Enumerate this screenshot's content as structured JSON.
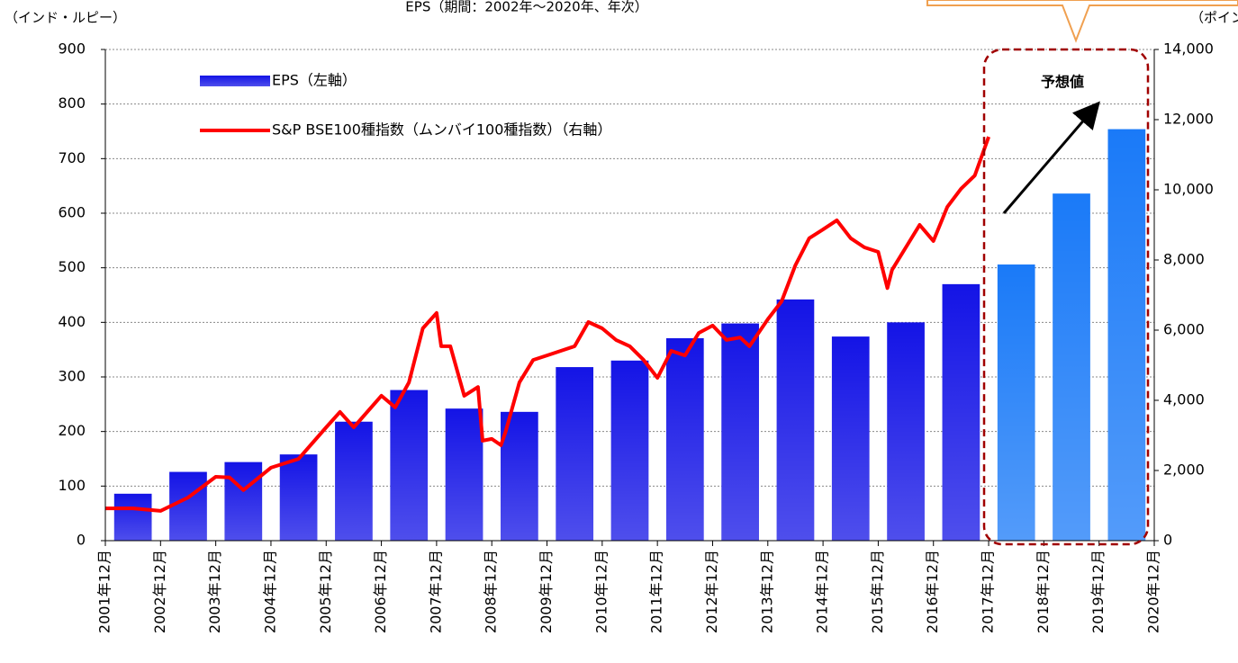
{
  "chart_data": {
    "type": "bar-line",
    "title": "EPS（期間：2002年～2020年、年次）",
    "y_axis_label": "（インド・ルピー）",
    "y2_axis_label": "（ポイント）",
    "annotation": "予想値",
    "xlim": [
      "2001-12",
      "2020-12"
    ],
    "xticks": [
      {
        "value": "2001-12",
        "label": "2001年12月"
      },
      {
        "value": "2002-12",
        "label": "2002年12月"
      },
      {
        "value": "2003-12",
        "label": "2003年12月"
      },
      {
        "value": "2004-12",
        "label": "2004年12月"
      },
      {
        "value": "2005-12",
        "label": "2005年12月"
      },
      {
        "value": "2006-12",
        "label": "2006年12月"
      },
      {
        "value": "2007-12",
        "label": "2007年12月"
      },
      {
        "value": "2008-12",
        "label": "2008年12月"
      },
      {
        "value": "2009-12",
        "label": "2009年12月"
      },
      {
        "value": "2010-12",
        "label": "2010年12月"
      },
      {
        "value": "2011-12",
        "label": "2011年12月"
      },
      {
        "value": "2012-12",
        "label": "2012年12月"
      },
      {
        "value": "2013-12",
        "label": "2013年12月"
      },
      {
        "value": "2014-12",
        "label": "2014年12月"
      },
      {
        "value": "2015-12",
        "label": "2015年12月"
      },
      {
        "value": "2016-12",
        "label": "2016年12月"
      },
      {
        "value": "2017-12",
        "label": "2017年12月"
      },
      {
        "value": "2018-12",
        "label": "2018年12月"
      },
      {
        "value": "2019-12",
        "label": "2019年12月"
      },
      {
        "value": "2020-12",
        "label": "2020年12月"
      }
    ],
    "ylim": [
      0,
      900
    ],
    "yticks": [
      0,
      100,
      200,
      300,
      400,
      500,
      600,
      700,
      800,
      900
    ],
    "y2lim": [
      0,
      14000
    ],
    "y2ticks": [
      0,
      {
        "value": 2000,
        "label": "2,000"
      },
      {
        "value": 4000,
        "label": "4,000"
      },
      {
        "value": 6000,
        "label": "6,000"
      },
      {
        "value": 8000,
        "label": "8,000"
      },
      {
        "value": 10000,
        "label": "10,000"
      },
      {
        "value": 12000,
        "label": "12,000"
      },
      {
        "value": 14000,
        "label": "14,000"
      }
    ],
    "grid": true,
    "series": [
      {
        "name": "EPS（左軸）",
        "type": "bar",
        "color": "#1414e6",
        "colors": [
          "#1414e6",
          "#1414e6",
          "#1414e6",
          "#1414e6",
          "#1414e6",
          "#1414e6",
          "#1414e6",
          "#1414e6",
          "#1414e6",
          "#1414e6",
          "#1414e6",
          "#1414e6",
          "#1414e6",
          "#1414e6",
          "#1414e6",
          "#1414e6",
          "#1a7af8",
          "#1a7af8",
          "#1a7af8"
        ],
        "values": [
          86,
          126,
          144,
          158,
          218,
          276,
          242,
          236,
          318,
          330,
          371,
          398,
          442,
          374,
          400,
          470,
          506,
          636,
          754
        ]
      },
      {
        "name": "S&P BSE100種指数（ムンバイ100種指数）（右軸）",
        "type": "line",
        "axis": "y2",
        "color": "#ff0000",
        "x": [
          "2001-12",
          "2002-06",
          "2002-12",
          "2003-06",
          "2003-12",
          "2004-03",
          "2004-06",
          "2004-12",
          "2005-06",
          "2005-12",
          "2006-03",
          "2006-06",
          "2006-12",
          "2007-03",
          "2007-06",
          "2007-09",
          "2007-12",
          "2008-01",
          "2008-03",
          "2008-06",
          "2008-09",
          "2008-10",
          "2008-12",
          "2009-02",
          "2009-03",
          "2009-06",
          "2009-09",
          "2009-12",
          "2010-03",
          "2010-06",
          "2010-09",
          "2010-12",
          "2011-03",
          "2011-06",
          "2011-09",
          "2011-12",
          "2012-03",
          "2012-06",
          "2012-09",
          "2012-12",
          "2013-03",
          "2013-06",
          "2013-08",
          "2013-12",
          "2014-03",
          "2014-06",
          "2014-09",
          "2014-12",
          "2015-03",
          "2015-06",
          "2015-09",
          "2015-12",
          "2016-02",
          "2016-03",
          "2016-06",
          "2016-09",
          "2016-12",
          "2017-03",
          "2017-06",
          "2017-09",
          "2017-12"
        ],
        "values": [
          920,
          920,
          850,
          1230,
          1820,
          1800,
          1440,
          2080,
          2330,
          3230,
          3670,
          3230,
          4130,
          3800,
          4510,
          6050,
          6490,
          5540,
          5540,
          4130,
          4380,
          2850,
          2900,
          2720,
          3100,
          4510,
          5150,
          5280,
          5410,
          5540,
          6230,
          6050,
          5720,
          5540,
          5150,
          4640,
          5410,
          5280,
          5920,
          6130,
          5720,
          5790,
          5540,
          6310,
          6820,
          7850,
          8620,
          8870,
          9130,
          8620,
          8360,
          8230,
          7200,
          7720,
          8360,
          9000,
          8540,
          9510,
          10030,
          10410,
          11510
        ]
      }
    ]
  }
}
